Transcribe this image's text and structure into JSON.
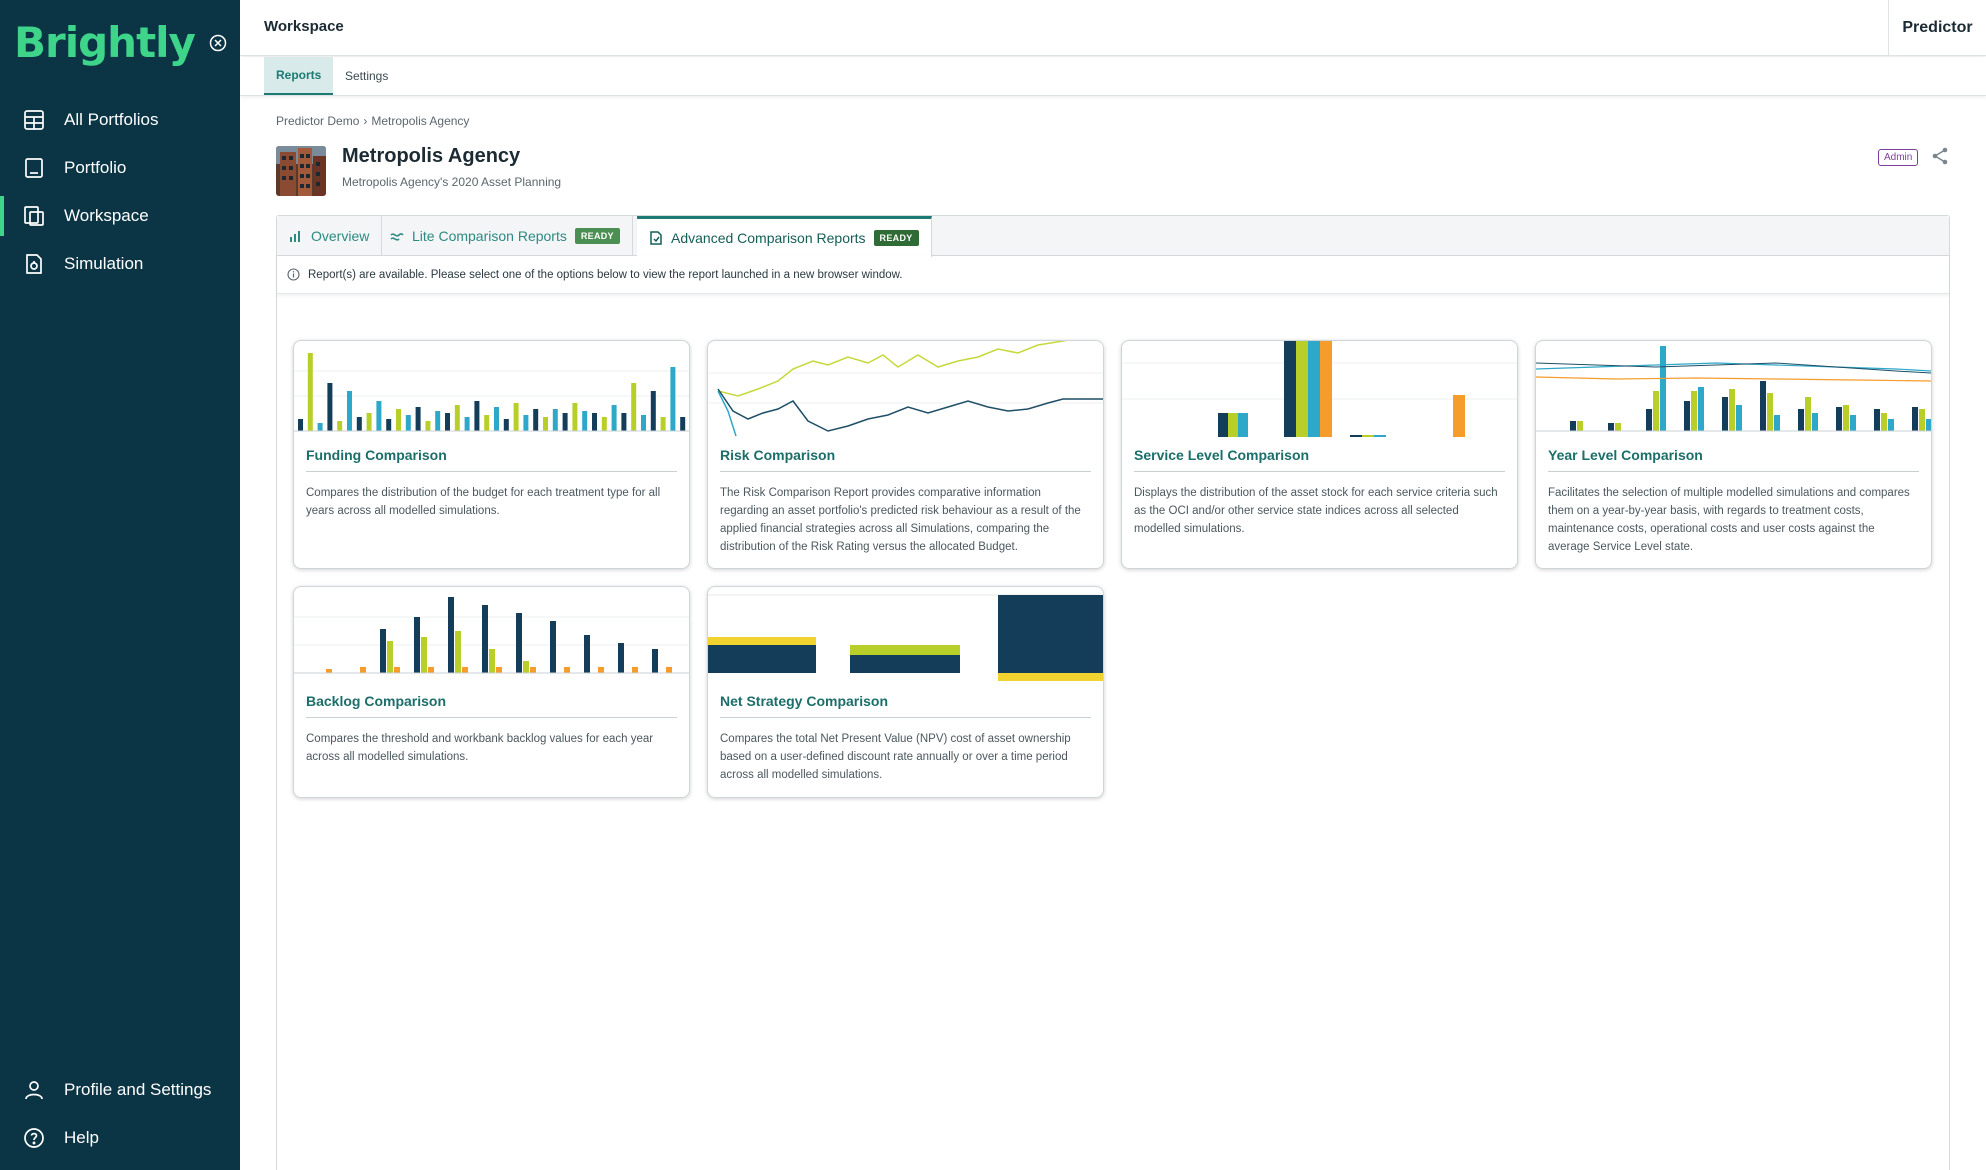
{
  "sidebar": {
    "logo": "Brightly",
    "items": [
      {
        "label": "All Portfolios",
        "icon": "portfolios-icon"
      },
      {
        "label": "Portfolio",
        "icon": "portfolio-icon"
      },
      {
        "label": "Workspace",
        "icon": "workspace-icon"
      },
      {
        "label": "Simulation",
        "icon": "simulation-icon"
      }
    ],
    "bottom": [
      {
        "label": "Profile and Settings",
        "icon": "user-icon"
      },
      {
        "label": "Help",
        "icon": "help-icon"
      }
    ]
  },
  "topbar": {
    "title": "Workspace",
    "right": "Predictor"
  },
  "subtabs": [
    "Reports",
    "Settings"
  ],
  "breadcrumb": [
    "Predictor Demo",
    "Metropolis Agency"
  ],
  "agency": {
    "title": "Metropolis Agency",
    "subtitle": "Metropolis Agency's 2020 Asset Planning",
    "role": "Admin"
  },
  "tabs": [
    {
      "label": "Overview"
    },
    {
      "label": "Lite Comparison Reports",
      "badge": "READY"
    },
    {
      "label": "Advanced Comparison Reports",
      "badge": "READY"
    }
  ],
  "info": "Report(s) are available. Please select one of the options below to view the report launched in a new browser window.",
  "cards": [
    {
      "title": "Funding Comparison",
      "desc": "Compares the distribution of the budget for each treatment type for all years across all modelled simulations."
    },
    {
      "title": "Risk Comparison",
      "desc": "The Risk Comparison Report provides comparative information regarding an asset portfolio's predicted risk behaviour as a result of the applied financial strategies across all Simulations, comparing the distribution of the Risk Rating versus the allocated Budget."
    },
    {
      "title": "Service Level Comparison",
      "desc": "Displays the distribution of the asset stock for each service criteria such as the OCI and/or other service state indices across all selected modelled simulations."
    },
    {
      "title": "Year Level Comparison",
      "desc": "Facilitates the selection of multiple modelled simulations and compares them on a year-by-year basis, with regards to treatment costs, maintenance costs, operational costs and user costs against the average Service Level state."
    },
    {
      "title": "Backlog Comparison",
      "desc": "Compares the threshold and workbank backlog values for each year across all modelled simulations."
    },
    {
      "title": "Net Strategy Comparison",
      "desc": "Compares the total Net Present Value (NPV) cost of asset ownership based on a user-defined discount rate annually or over a time period across all modelled simulations."
    }
  ],
  "colors": {
    "navy": "#0b3445",
    "accent": "#3ed58b",
    "teal": "#1b7a72",
    "chart_navy": "#143d59",
    "chart_lime": "#b8cf2a",
    "chart_cyan": "#2ea8c9",
    "chart_orange": "#f59c2a",
    "chart_yellow": "#f2d22e"
  }
}
